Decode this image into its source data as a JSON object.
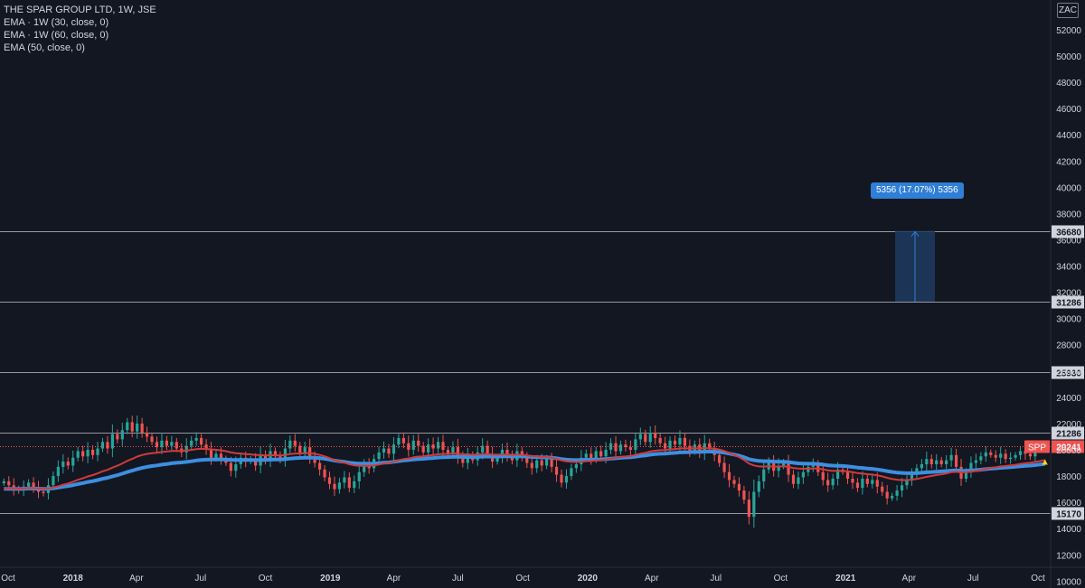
{
  "legend": {
    "title": "THE SPAR GROUP LTD, 1W, JSE",
    "ema1": "EMA · 1W (30, close, 0)",
    "ema2": "EMA · 1W (60, close, 0)",
    "ema3": "EMA (50, close, 0)"
  },
  "currency": "ZAC",
  "symbol": "SPP",
  "measure": {
    "label": "5356 (17.07%) 5356",
    "from": 31286,
    "to": 36680
  },
  "colors": {
    "background": "#131722",
    "axis_text": "#d1d4dc",
    "level_line": "#9598a1",
    "up_candle": "#26a69a",
    "down_candle": "#ef5350",
    "ema_red": "#d13b3b",
    "ema_blue": "#3d8fe0",
    "price_tag": "#ef5350",
    "measure_fill": "#1e3a5f",
    "measure_accent": "#2f7fd6"
  },
  "chart_data": {
    "type": "candlestick",
    "ylim": [
      10000,
      52000
    ],
    "yticks": [
      10000,
      12000,
      14000,
      16000,
      18000,
      20000,
      22000,
      24000,
      26000,
      28000,
      30000,
      32000,
      34000,
      36000,
      38000,
      40000,
      42000,
      44000,
      46000,
      48000,
      50000,
      52000
    ],
    "xticks": [
      {
        "label": "Oct",
        "date": "2017-10-01",
        "bold": false
      },
      {
        "label": "2018",
        "date": "2018-01-01",
        "bold": true
      },
      {
        "label": "Apr",
        "date": "2018-04-01",
        "bold": false
      },
      {
        "label": "Jul",
        "date": "2018-07-01",
        "bold": false
      },
      {
        "label": "Oct",
        "date": "2018-10-01",
        "bold": false
      },
      {
        "label": "2019",
        "date": "2019-01-01",
        "bold": true
      },
      {
        "label": "Apr",
        "date": "2019-04-01",
        "bold": false
      },
      {
        "label": "Jul",
        "date": "2019-07-01",
        "bold": false
      },
      {
        "label": "Oct",
        "date": "2019-10-01",
        "bold": false
      },
      {
        "label": "2020",
        "date": "2020-01-01",
        "bold": true
      },
      {
        "label": "Apr",
        "date": "2020-04-01",
        "bold": false
      },
      {
        "label": "Jul",
        "date": "2020-07-01",
        "bold": false
      },
      {
        "label": "Oct",
        "date": "2020-10-01",
        "bold": false
      },
      {
        "label": "2021",
        "date": "2021-01-01",
        "bold": true
      },
      {
        "label": "Apr",
        "date": "2021-04-01",
        "bold": false
      },
      {
        "label": "Jul",
        "date": "2021-07-01",
        "bold": false
      },
      {
        "label": "Oct",
        "date": "2021-10-01",
        "bold": false
      }
    ],
    "levels": [
      36680,
      31286,
      25930,
      21286,
      15170
    ],
    "last_price": 20241,
    "series": [
      {
        "name": "SPP",
        "kind": "candles",
        "start_date": "2017-09-25",
        "closes": [
          17600,
          17300,
          17000,
          16900,
          17200,
          17500,
          17100,
          16800,
          16700,
          17300,
          18000,
          18700,
          19100,
          18800,
          19400,
          19900,
          19500,
          20000,
          19600,
          20100,
          20600,
          20100,
          21200,
          20800,
          21500,
          22100,
          21400,
          22000,
          21300,
          21000,
          20600,
          20200,
          20700,
          20300,
          20600,
          20100,
          19800,
          20300,
          20700,
          20900,
          20400,
          20000,
          19400,
          19700,
          19300,
          19000,
          18400,
          18900,
          19400,
          19100,
          19300,
          18800,
          19600,
          19200,
          19900,
          19500,
          19300,
          20100,
          20700,
          20300,
          19800,
          20200,
          19500,
          19000,
          18500,
          17900,
          17400,
          17000,
          17500,
          17900,
          17100,
          17600,
          18300,
          18900,
          18600,
          19300,
          19800,
          20100,
          19700,
          20400,
          20900,
          20500,
          20000,
          20700,
          20300,
          19800,
          20400,
          20100,
          20600,
          20000,
          19700,
          20200,
          19500,
          19000,
          19600,
          19200,
          19800,
          20300,
          19700,
          19100,
          19400,
          20000,
          19600,
          19200,
          19900,
          19400,
          19000,
          18600,
          19200,
          18800,
          19300,
          18700,
          18100,
          17500,
          18000,
          18600,
          18900,
          19400,
          19700,
          19300,
          19900,
          19500,
          20000,
          20500,
          19900,
          20400,
          20200,
          20000,
          20800,
          21200,
          20600,
          21300,
          20900,
          20500,
          20100,
          20700,
          20400,
          20900,
          20300,
          19900,
          20400,
          19800,
          20500,
          20100,
          19600,
          19000,
          18300,
          17700,
          17400,
          16900,
          16200,
          14900,
          16800,
          17600,
          18500,
          19100,
          18400,
          18800,
          19000,
          18100,
          17400,
          17900,
          18300,
          18700,
          18900,
          18300,
          17700,
          17300,
          17800,
          18500,
          18300,
          17800,
          17500,
          17100,
          17800,
          17400,
          17700,
          17200,
          16800,
          16300,
          16500,
          16900,
          17300,
          17700,
          18100,
          18600,
          18900,
          19300,
          18900,
          19200,
          18900,
          19200,
          19600,
          18700,
          17800,
          18300,
          19000,
          19200,
          19500,
          19800,
          19600,
          19400,
          19700,
          19300,
          19400,
          19600,
          19900,
          19700,
          19500,
          20000,
          20100,
          20241
        ]
      },
      {
        "name": "EMA · 1W (30, close, 0)",
        "kind": "line",
        "color": "#d13b3b",
        "period": 30
      },
      {
        "name": "EMA · 1W (60, close, 0)",
        "kind": "line",
        "color": "#3d8fe0",
        "period": 60
      }
    ],
    "axis_end": "2021-10-18"
  }
}
